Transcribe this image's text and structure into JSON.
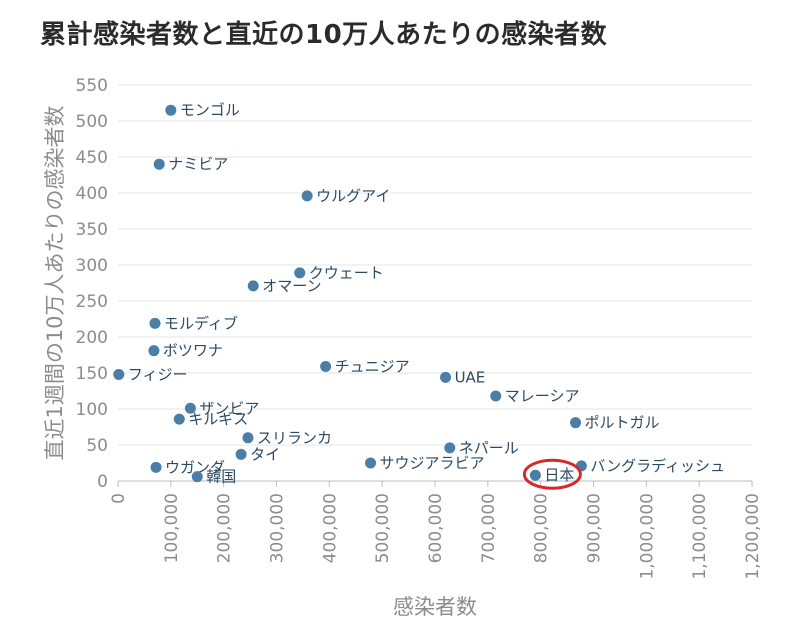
{
  "title": "累計感染者数と直近の10万人あたりの感染者数",
  "chart_data": {
    "type": "scatter",
    "title": "累計感染者数と直近の10万人あたりの感染者数",
    "xlabel": "感染者数",
    "ylabel": "直近1週間の10万人あたりの感染者数",
    "xlim": [
      0,
      1200000
    ],
    "ylim": [
      0,
      550
    ],
    "x_ticks": [
      "0",
      "100,000",
      "200,000",
      "300,000",
      "400,000",
      "500,000",
      "600,000",
      "700,000",
      "800,000",
      "900,000",
      "1,000,000",
      "1,100,000",
      "1,200,000"
    ],
    "x_tick_values": [
      0,
      100000,
      200000,
      300000,
      400000,
      500000,
      600000,
      700000,
      800000,
      900000,
      1000000,
      1100000,
      1200000
    ],
    "y_ticks": [
      "0",
      "50",
      "100",
      "150",
      "200",
      "250",
      "300",
      "350",
      "400",
      "450",
      "500",
      "550"
    ],
    "y_tick_values": [
      0,
      50,
      100,
      150,
      200,
      250,
      300,
      350,
      400,
      450,
      500,
      550
    ],
    "grid": "horizontal",
    "point_color": "#4b7ea6",
    "highlight_color": "#d62a2a",
    "highlight": "日本",
    "points": [
      {
        "label": "モンゴル",
        "x": 100000,
        "y": 515
      },
      {
        "label": "ナミビア",
        "x": 78000,
        "y": 440
      },
      {
        "label": "ウルグアイ",
        "x": 358000,
        "y": 396
      },
      {
        "label": "クウェート",
        "x": 344000,
        "y": 289
      },
      {
        "label": "オマーン",
        "x": 256000,
        "y": 271
      },
      {
        "label": "モルディブ",
        "x": 70000,
        "y": 219
      },
      {
        "label": "ボツワナ",
        "x": 68000,
        "y": 181
      },
      {
        "label": "チュニジア",
        "x": 393000,
        "y": 159
      },
      {
        "label": "フィジー",
        "x": 1500,
        "y": 148
      },
      {
        "label": "UAE",
        "x": 620000,
        "y": 144
      },
      {
        "label": "マレーシア",
        "x": 715000,
        "y": 118
      },
      {
        "label": "ザンビア",
        "x": 137000,
        "y": 101
      },
      {
        "label": "キルギス",
        "x": 116000,
        "y": 86
      },
      {
        "label": "ポルトガル",
        "x": 866000,
        "y": 81
      },
      {
        "label": "スリランカ",
        "x": 246000,
        "y": 60
      },
      {
        "label": "ネパール",
        "x": 628000,
        "y": 46
      },
      {
        "label": "タイ",
        "x": 233000,
        "y": 37
      },
      {
        "label": "サウジアラビア",
        "x": 478000,
        "y": 25
      },
      {
        "label": "ウガンダ",
        "x": 72000,
        "y": 19
      },
      {
        "label": "バングラディッシュ",
        "x": 877000,
        "y": 21
      },
      {
        "label": "日本",
        "x": 790000,
        "y": 8
      },
      {
        "label": "韓国",
        "x": 150000,
        "y": 6
      }
    ]
  }
}
